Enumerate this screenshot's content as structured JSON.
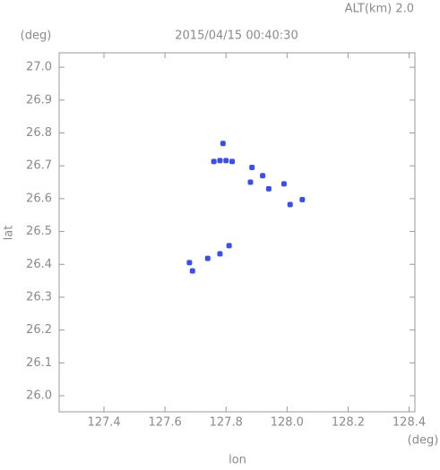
{
  "chart_data": {
    "type": "scatter",
    "title": "2015/04/15 00:40:30",
    "subtitle": "ALT(km) 2.0",
    "y_unit": "(deg)",
    "x_unit": "(deg)",
    "xlabel": "lon",
    "ylabel": "lat",
    "xlim": [
      127.253,
      128.419
    ],
    "ylim": [
      25.951,
      27.044
    ],
    "xticks": [
      127.4,
      127.6,
      127.8,
      {
        "value": 128.0,
        "label": "128.0"
      },
      128.2,
      128.4
    ],
    "yticks": [
      {
        "value": 26.0,
        "label": "26.0"
      },
      26.1,
      26.2,
      26.3,
      26.4,
      26.5,
      26.6,
      26.7,
      26.8,
      26.9,
      {
        "value": 27.0,
        "label": "27.0"
      }
    ],
    "color": "#3b4fe6",
    "x": [
      127.76,
      127.78,
      127.8,
      127.82,
      127.79,
      127.885,
      127.88,
      127.92,
      127.94,
      127.99,
      128.05,
      128.01,
      127.68,
      127.69,
      127.74,
      127.78,
      127.81
    ],
    "y": [
      26.713,
      26.716,
      26.716,
      26.713,
      26.768,
      26.695,
      26.65,
      26.67,
      26.63,
      26.645,
      26.597,
      26.582,
      26.405,
      26.38,
      26.418,
      26.432,
      26.457
    ]
  }
}
